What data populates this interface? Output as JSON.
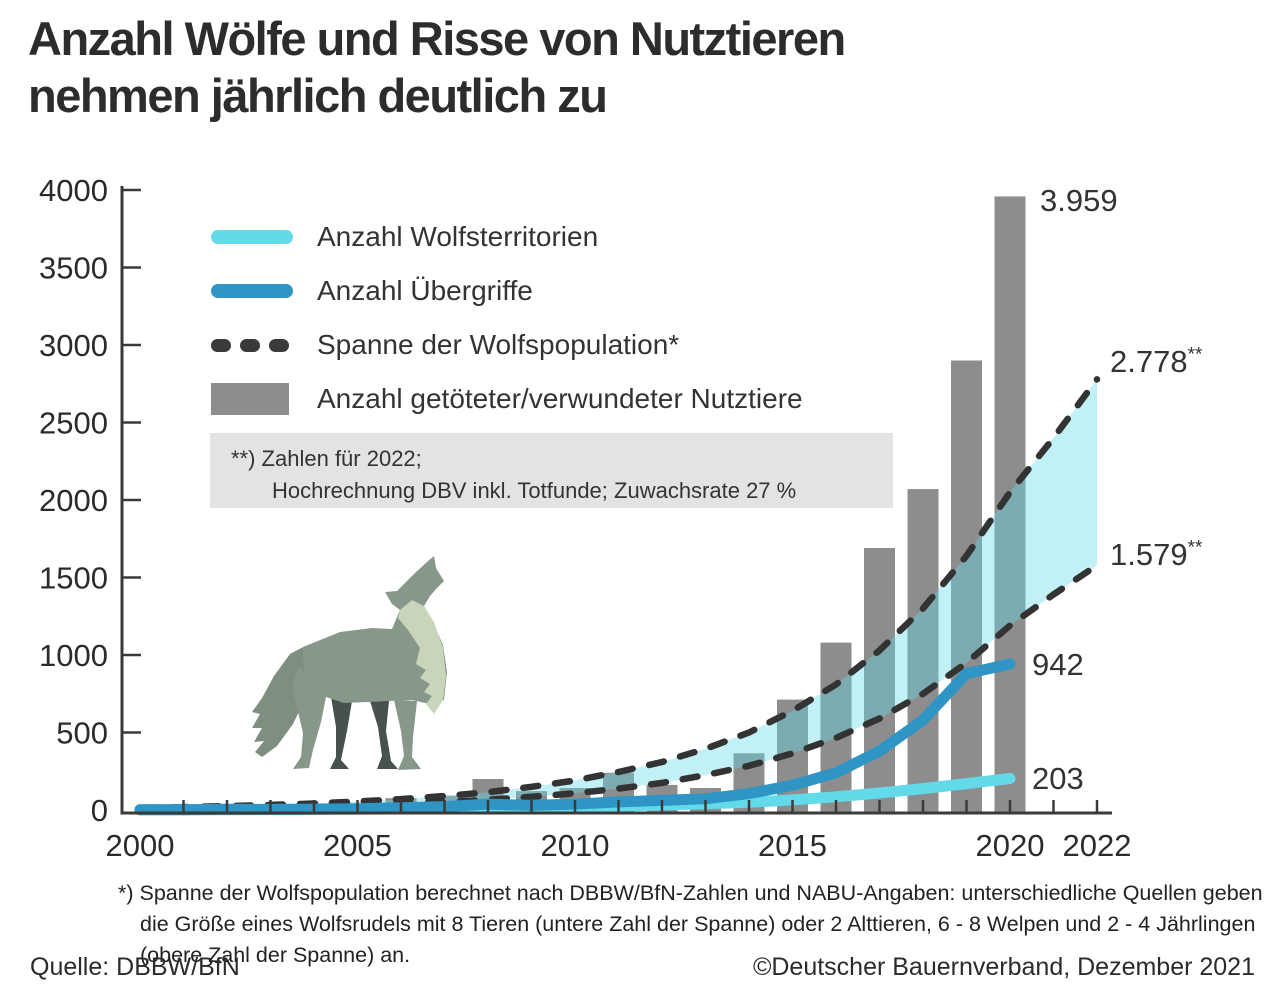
{
  "title": {
    "line1": "Anzahl Wölfe und Risse von Nutztieren",
    "line2": "nehmen jährlich deutlich zu"
  },
  "legend": {
    "items": [
      {
        "label": "Anzahl Wolfsterritorien",
        "swatch": "line-cyan"
      },
      {
        "label": "Anzahl Übergriffe",
        "swatch": "line-blue"
      },
      {
        "label": "Spanne der Wolfspopulation*",
        "swatch": "dashed-dark"
      },
      {
        "label": "Anzahl getöteter/verwundeter Nutztiere",
        "swatch": "bar-gray"
      }
    ]
  },
  "note_box": {
    "line1": "**) Zahlen für 2022;",
    "line2": "Hochrechnung DBV inkl. Totfunde; Zuwachsrate 27 %"
  },
  "value_labels": {
    "bar_2020": "3.959",
    "band_upper": "2.778",
    "band_upper_sup": "**",
    "band_lower": "1.579",
    "band_lower_sup": "**",
    "attacks_2020": "942",
    "territories_2020": "203"
  },
  "footnote": {
    "line1": "*) Spanne der Wolfspopulation berechnet nach DBBW/BfN-Zahlen und NABU-Angaben: unterschiedliche Quellen geben",
    "line2": "die Größe eines Wolfsrudels mit 8 Tieren (untere Zahl der Spanne) oder 2 Alttieren, 6 - 8 Welpen und 2 - 4 Jährlingen",
    "line3": "(obere Zahl der Spanne) an."
  },
  "footer": {
    "source": "Quelle: DBBW/BfN",
    "copyright": "©Deutscher Bauernverband, Dezember 2021"
  },
  "colors": {
    "territories_cyan": "#63daea",
    "attacks_blue": "#2e95c5",
    "band_fill": "rgba(99,218,234,0.40)",
    "population_dash": "#333333",
    "bars_gray": "#8d8d8d",
    "axis": "#3a3a3a",
    "tick_text": "#2b2b2b",
    "note_box_bg": "#e3e3e3",
    "wolf_body": "#87988a",
    "wolf_chest": "#c9d5bb",
    "wolf_legs_dark": "#46524b",
    "wolf_tail": "#7e8f81"
  },
  "chart_data": {
    "type": "mixed",
    "subtypes": [
      "bar",
      "line",
      "band"
    ],
    "x_axis": {
      "min": 2000,
      "max": 2022,
      "labeled_ticks": [
        2000,
        2005,
        2010,
        2015,
        2020,
        2022
      ],
      "minor_tick_every_year": true
    },
    "y_axis": {
      "min": 0,
      "max": 4000,
      "tick_step": 500,
      "ticks": [
        0,
        500,
        1000,
        1500,
        2000,
        2500,
        3000,
        3500,
        4000
      ]
    },
    "grid": false,
    "legend_position": "top-left-inside",
    "series": [
      {
        "name": "Anzahl getöteter/verwundeter Nutztiere",
        "type": "bar",
        "points": [
          [
            2002,
            33
          ],
          [
            2003,
            12
          ],
          [
            2004,
            18
          ],
          [
            2005,
            28
          ],
          [
            2006,
            76
          ],
          [
            2007,
            92
          ],
          [
            2008,
            200
          ],
          [
            2009,
            122
          ],
          [
            2010,
            142
          ],
          [
            2011,
            240
          ],
          [
            2012,
            162
          ],
          [
            2013,
            142
          ],
          [
            2014,
            366
          ],
          [
            2015,
            712
          ],
          [
            2016,
            1080
          ],
          [
            2017,
            1690
          ],
          [
            2018,
            2070
          ],
          [
            2019,
            2900
          ],
          [
            2020,
            3959
          ]
        ],
        "labeled_point": {
          "year": 2020,
          "value": 3959,
          "label": "3.959"
        }
      },
      {
        "name": "Anzahl Übergriffe",
        "type": "line",
        "points": [
          [
            2000,
            2
          ],
          [
            2001,
            2
          ],
          [
            2002,
            5
          ],
          [
            2003,
            4
          ],
          [
            2004,
            6
          ],
          [
            2005,
            8
          ],
          [
            2006,
            15
          ],
          [
            2007,
            22
          ],
          [
            2008,
            38
          ],
          [
            2009,
            30
          ],
          [
            2010,
            38
          ],
          [
            2011,
            52
          ],
          [
            2012,
            62
          ],
          [
            2013,
            72
          ],
          [
            2014,
            106
          ],
          [
            2015,
            160
          ],
          [
            2016,
            240
          ],
          [
            2017,
            380
          ],
          [
            2018,
            580
          ],
          [
            2019,
            880
          ],
          [
            2020,
            942
          ]
        ],
        "labeled_point": {
          "year": 2020,
          "value": 942,
          "label": "942"
        }
      },
      {
        "name": "Anzahl Wolfsterritorien",
        "type": "line",
        "points": [
          [
            2000,
            1
          ],
          [
            2001,
            1
          ],
          [
            2002,
            2
          ],
          [
            2003,
            3
          ],
          [
            2004,
            4
          ],
          [
            2005,
            5
          ],
          [
            2006,
            7
          ],
          [
            2007,
            9
          ],
          [
            2008,
            12
          ],
          [
            2009,
            15
          ],
          [
            2010,
            19
          ],
          [
            2011,
            25
          ],
          [
            2012,
            32
          ],
          [
            2013,
            40
          ],
          [
            2014,
            50
          ],
          [
            2015,
            65
          ],
          [
            2016,
            85
          ],
          [
            2017,
            110
          ],
          [
            2018,
            138
          ],
          [
            2019,
            170
          ],
          [
            2020,
            203
          ]
        ],
        "labeled_point": {
          "year": 2020,
          "value": 203,
          "label": "203"
        }
      },
      {
        "name": "Spanne der Wolfspopulation (untere Zahl)",
        "type": "dashed-line",
        "points": [
          [
            2000,
            8
          ],
          [
            2001,
            11
          ],
          [
            2002,
            14
          ],
          [
            2003,
            18
          ],
          [
            2004,
            24
          ],
          [
            2005,
            31
          ],
          [
            2006,
            40
          ],
          [
            2007,
            52
          ],
          [
            2008,
            66
          ],
          [
            2009,
            85
          ],
          [
            2010,
            108
          ],
          [
            2011,
            138
          ],
          [
            2012,
            175
          ],
          [
            2013,
            225
          ],
          [
            2014,
            285
          ],
          [
            2015,
            365
          ],
          [
            2016,
            465
          ],
          [
            2017,
            590
          ],
          [
            2018,
            750
          ],
          [
            2019,
            950
          ],
          [
            2020,
            1190
          ],
          [
            2021,
            1390
          ],
          [
            2022,
            1579
          ]
        ],
        "labeled_point": {
          "year": 2022,
          "value": 1579,
          "label": "1.579**"
        }
      },
      {
        "name": "Spanne der Wolfspopulation (obere Zahl)",
        "type": "dashed-line",
        "points": [
          [
            2000,
            15
          ],
          [
            2001,
            19
          ],
          [
            2002,
            25
          ],
          [
            2003,
            33
          ],
          [
            2004,
            42
          ],
          [
            2005,
            55
          ],
          [
            2006,
            70
          ],
          [
            2007,
            90
          ],
          [
            2008,
            115
          ],
          [
            2009,
            150
          ],
          [
            2010,
            190
          ],
          [
            2011,
            245
          ],
          [
            2012,
            310
          ],
          [
            2013,
            395
          ],
          [
            2014,
            500
          ],
          [
            2015,
            640
          ],
          [
            2016,
            810
          ],
          [
            2017,
            1030
          ],
          [
            2018,
            1300
          ],
          [
            2019,
            1640
          ],
          [
            2020,
            2050
          ],
          [
            2021,
            2400
          ],
          [
            2022,
            2778
          ]
        ],
        "labeled_point": {
          "year": 2022,
          "value": 2778,
          "label": "2.778**"
        }
      }
    ]
  }
}
